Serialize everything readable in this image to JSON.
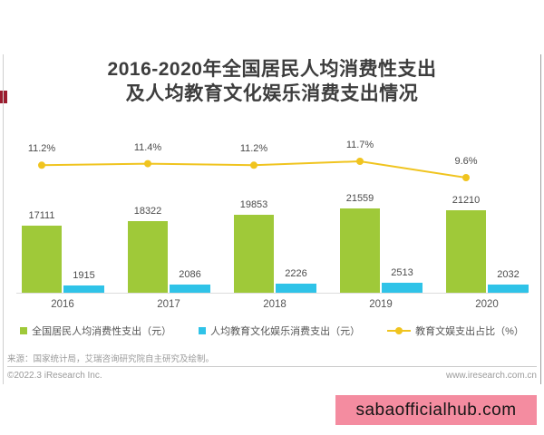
{
  "page": {
    "title_line1": "2016-2020年全国居民人均消费性支出",
    "title_line2": "及人均教育文化娱乐消费支出情况"
  },
  "chart_data": {
    "type": "bar",
    "title": "2016-2020年全国居民人均消费性支出及人均教育文化娱乐消费支出情况",
    "categories": [
      "2016",
      "2017",
      "2018",
      "2019",
      "2020"
    ],
    "series": [
      {
        "name": "全国居民人均消费性支出（元）",
        "type": "bar",
        "color": "#9fc939",
        "values": [
          17111,
          18322,
          19853,
          21559,
          21210
        ]
      },
      {
        "name": "人均教育文化娱乐消费支出（元）",
        "type": "bar",
        "color": "#2fc3e8",
        "values": [
          1915,
          2086,
          2226,
          2513,
          2032
        ]
      },
      {
        "name": "教育文娱支出占比（%）",
        "type": "line",
        "color": "#f0c41f",
        "values": [
          11.2,
          11.4,
          11.2,
          11.7,
          9.6
        ],
        "labels": [
          "11.2%",
          "11.4%",
          "11.2%",
          "11.7%",
          "9.6%"
        ]
      }
    ],
    "xlabel": "",
    "ylabel": "",
    "grid": false,
    "legend_position": "bottom",
    "value_labels": true
  },
  "footer": {
    "source": "来源：国家统计局，艾瑞咨询研究院自主研究及绘制。",
    "copyright": "©2022.3 iResearch Inc.",
    "website": "www.iresearch.com.cn"
  },
  "watermark": {
    "text": "sabaofficialhub.com",
    "background": "#f48ca0"
  },
  "colors": {
    "logo_mark": "#9b1c2e",
    "axis_line": "#dcdcdc"
  }
}
